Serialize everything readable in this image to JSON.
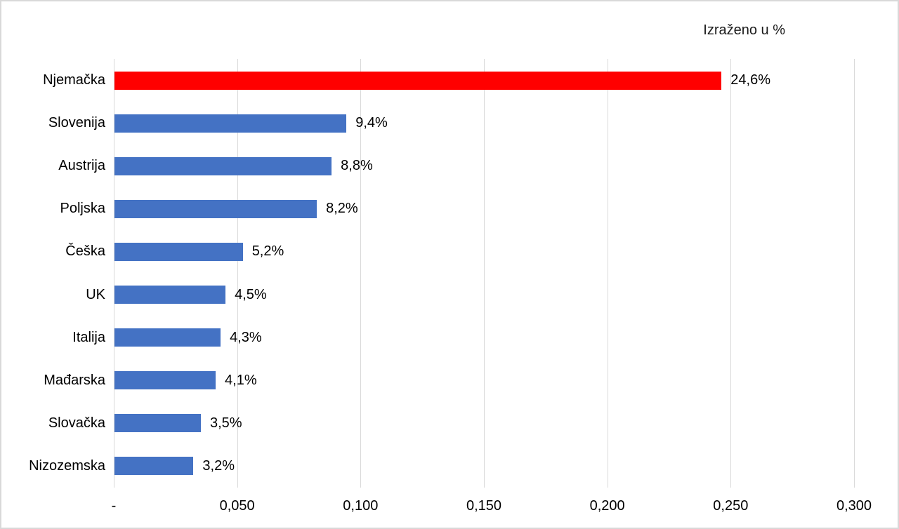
{
  "chart_data": {
    "type": "bar",
    "orientation": "horizontal",
    "title": "Izraženo u %",
    "categories": [
      "Njemačka",
      "Slovenija",
      "Austrija",
      "Poljska",
      "Češka",
      "UK",
      "Italija",
      "Mađarska",
      "Slovačka",
      "Nizozemska"
    ],
    "values": [
      0.246,
      0.094,
      0.088,
      0.082,
      0.052,
      0.045,
      0.043,
      0.041,
      0.035,
      0.032
    ],
    "value_labels": [
      "24,6%",
      "9,4%",
      "8,8%",
      "8,2%",
      "5,2%",
      "4,5%",
      "4,3%",
      "4,1%",
      "3,5%",
      "3,2%"
    ],
    "highlight_index": 0,
    "highlight_color": "#ff0000",
    "bar_color": "#4472c4",
    "gridline_color": "#d9d9d9",
    "xlim": [
      0,
      0.3
    ],
    "x_tick_values": [
      0,
      0.05,
      0.1,
      0.15,
      0.2,
      0.25,
      0.3
    ],
    "x_tick_labels": [
      "-",
      "0,050",
      "0,100",
      "0,150",
      "0,200",
      "0,250",
      "0,300"
    ],
    "grid": true,
    "legend": "none",
    "xlabel": "",
    "ylabel": ""
  }
}
